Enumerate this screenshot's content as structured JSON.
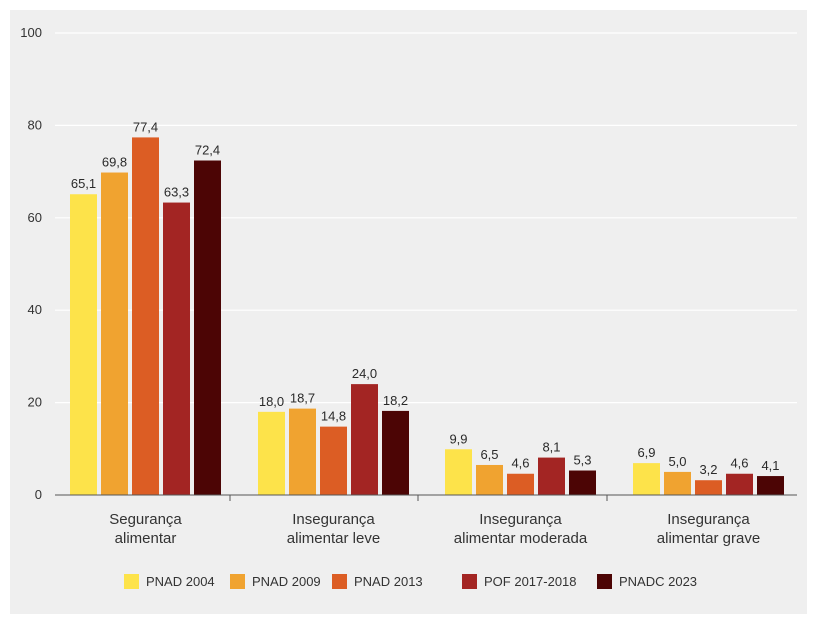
{
  "chart_data": {
    "type": "bar",
    "ylim": [
      0,
      100
    ],
    "yticks": [
      "0",
      "20",
      "40",
      "60",
      "80",
      "100"
    ],
    "categories": [
      [
        "Segurança",
        "alimentar"
      ],
      [
        "Insegurança",
        "alimentar leve"
      ],
      [
        "Insegurança",
        "alimentar moderada"
      ],
      [
        "Insegurança",
        "alimentar grave"
      ]
    ],
    "series": [
      {
        "name": "PNAD 2004",
        "color": "#fde34a",
        "values": [
          65.1,
          18.0,
          9.9,
          6.9
        ],
        "labels": [
          "65,1",
          "18,0",
          "9,9",
          "6,9"
        ]
      },
      {
        "name": "PNAD 2009",
        "color": "#f0a330",
        "values": [
          69.8,
          18.7,
          6.5,
          5.0
        ],
        "labels": [
          "69,8",
          "18,7",
          "6,5",
          "5,0"
        ]
      },
      {
        "name": "PNAD 2013",
        "color": "#dc5d24",
        "values": [
          77.4,
          14.8,
          4.6,
          3.2
        ],
        "labels": [
          "77,4",
          "14,8",
          "4,6",
          "3,2"
        ]
      },
      {
        "name": "POF 2017-2018",
        "color": "#a32523",
        "values": [
          63.3,
          24.0,
          8.1,
          4.6
        ],
        "labels": [
          "63,3",
          "24,0",
          "8,1",
          "4,6"
        ]
      },
      {
        "name": "PNADC 2023",
        "color": "#4c0505",
        "values": [
          72.4,
          18.2,
          5.3,
          4.1
        ],
        "labels": [
          "72,4",
          "18,2",
          "5,3",
          "4,1"
        ]
      }
    ],
    "grid": true,
    "legend_position": "bottom"
  }
}
